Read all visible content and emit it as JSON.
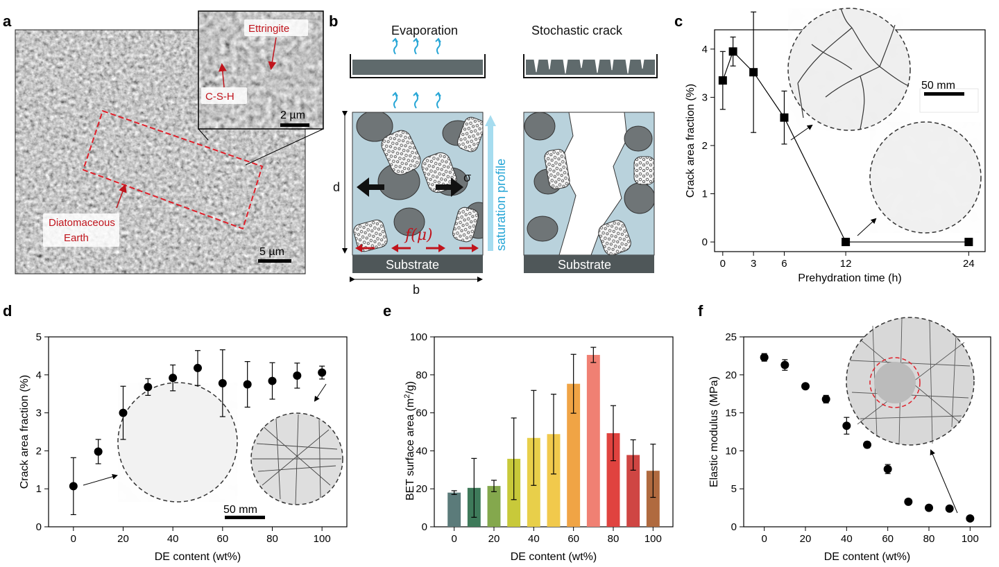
{
  "panel_labels": {
    "a": "a",
    "b": "b",
    "c": "c",
    "d": "d",
    "e": "e",
    "f": "f"
  },
  "panel_a": {
    "labels": {
      "ettringite": "Ettringite",
      "csh": "C-S-H",
      "de_line1": "Diatomaceous",
      "de_line2": "Earth"
    },
    "scale_main": "5 µm",
    "scale_inset": "2 µm"
  },
  "panel_b": {
    "title_left": "Evaporation",
    "title_right": "Stochastic crack",
    "dim_d": "d",
    "dim_b": "b",
    "sigma": "σ",
    "f_mu": "f(μ)",
    "saturation": "saturation profile",
    "substrate": "Substrate",
    "colors": {
      "paste": "#b9d2dc",
      "dark": "#4f5759",
      "arrow_red": "#d0141c",
      "vapor": "#27a6d6"
    }
  },
  "chart_data": [
    {
      "id": "c",
      "type": "scatter",
      "xlabel": "Prehydration time (h)",
      "ylabel": "Crack area fraction (%)",
      "xlim": [
        -0.8,
        25.6
      ],
      "ylim": [
        -0.2,
        4.4
      ],
      "xticks": [
        0,
        3,
        6,
        12,
        24
      ],
      "yticks": [
        0,
        1,
        2,
        3,
        4
      ],
      "x": [
        0,
        1,
        3,
        6,
        12,
        24
      ],
      "y": [
        3.35,
        3.95,
        3.52,
        2.58,
        0,
        0
      ],
      "err": [
        0.6,
        0.3,
        1.25,
        0.55,
        0,
        0
      ],
      "connected": true,
      "marker": "square",
      "inset_scale": "50 mm"
    },
    {
      "id": "d",
      "type": "scatter",
      "xlabel": "DE content (wt%)",
      "ylabel": "Crack area fraction (%)",
      "xlim": [
        -10,
        110
      ],
      "ylim": [
        0,
        5
      ],
      "xticks": [
        0,
        20,
        40,
        60,
        80,
        100
      ],
      "yticks": [
        0,
        1,
        2,
        3,
        4,
        5
      ],
      "x": [
        0,
        10,
        20,
        30,
        40,
        50,
        60,
        70,
        80,
        90,
        100
      ],
      "y": [
        1.07,
        1.98,
        3.0,
        3.68,
        3.92,
        4.18,
        3.78,
        3.75,
        3.84,
        3.98,
        4.06
      ],
      "err": [
        0.75,
        0.32,
        0.7,
        0.22,
        0.34,
        0.46,
        0.88,
        0.6,
        0.48,
        0.33,
        0.17
      ],
      "marker": "circle",
      "inset_scale": "50 mm"
    },
    {
      "id": "e",
      "type": "bar",
      "xlabel": "DE content (wt%)",
      "ylabel": "BET surface area (m²/g)",
      "ylabel_main": "BET surface area (m",
      "ylabel_sup": "2",
      "ylabel_end": "/g)",
      "xlim": [
        -10,
        110
      ],
      "ylim": [
        0,
        100
      ],
      "xticks": [
        0,
        20,
        40,
        60,
        80,
        100
      ],
      "yticks": [
        0,
        20,
        40,
        60,
        80,
        100
      ],
      "categories": [
        0,
        10,
        20,
        30,
        40,
        50,
        60,
        70,
        80,
        90,
        100
      ],
      "values": [
        18,
        20.5,
        21.5,
        35.8,
        46.8,
        48.8,
        75.3,
        90.5,
        49.3,
        37.8,
        29.5
      ],
      "err": [
        1,
        15.5,
        3,
        21.5,
        25,
        21,
        15.5,
        4,
        14.5,
        8,
        14
      ],
      "colors": [
        "#5b7b7a",
        "#3e7a5a",
        "#84a84d",
        "#c8c93a",
        "#e8cf4a",
        "#f1c94c",
        "#f0a445",
        "#f08073",
        "#e0433f",
        "#cf4643",
        "#b06a3f"
      ]
    },
    {
      "id": "f",
      "type": "scatter",
      "xlabel": "DE content (wt%)",
      "ylabel": "Elastic modulus (MPa)",
      "xlim": [
        -10,
        110
      ],
      "ylim": [
        0,
        25
      ],
      "xticks": [
        0,
        20,
        40,
        60,
        80,
        100
      ],
      "yticks": [
        0,
        5,
        10,
        15,
        20,
        25
      ],
      "x": [
        0,
        10,
        20,
        30,
        40,
        50,
        60,
        70,
        80,
        90,
        100
      ],
      "y": [
        22.3,
        21.3,
        18.5,
        16.8,
        13.3,
        10.8,
        7.6,
        3.3,
        2.5,
        2.4,
        1.1
      ],
      "err": [
        0.5,
        0.7,
        0.2,
        0.5,
        1.1,
        0.4,
        0.6,
        0.2,
        0.2,
        0.2,
        0.2
      ],
      "marker": "circle"
    }
  ]
}
